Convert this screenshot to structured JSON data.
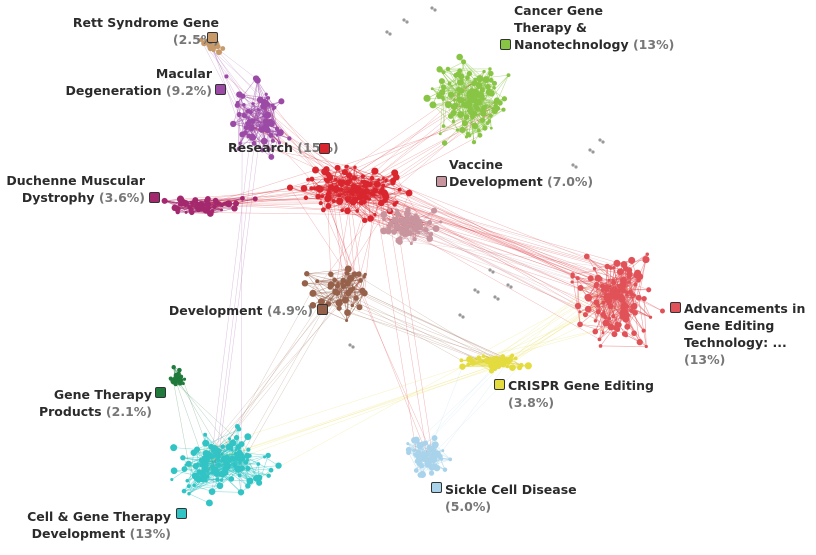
{
  "clusters": [
    {
      "key": "rett",
      "name_lines": [
        "Rett Syndrome Gene"
      ],
      "pct": "(2.5%)",
      "color": "#c89a6a"
    },
    {
      "key": "macular",
      "name_lines": [
        "Macular",
        "Degeneration"
      ],
      "pct": "(9.2%)",
      "color": "#9b4aa6"
    },
    {
      "key": "cancer",
      "name_lines": [
        "Cancer Gene",
        "Therapy &",
        "Nanotechnology"
      ],
      "pct": "(13%)",
      "color": "#88c545"
    },
    {
      "key": "research",
      "name_lines": [
        "Research"
      ],
      "pct": "(15%)",
      "color": "#d9262e"
    },
    {
      "key": "vaccine",
      "name_lines": [
        "Vaccine",
        "Development"
      ],
      "pct": "(7.0%)",
      "color": "#c8949e"
    },
    {
      "key": "duchenne",
      "name_lines": [
        "Duchenne Muscular",
        "Dystrophy"
      ],
      "pct": "(3.6%)",
      "color": "#a3286e"
    },
    {
      "key": "advancements",
      "name_lines": [
        "Advancements in",
        "Gene Editing",
        "Technology: ..."
      ],
      "pct": "(13%)",
      "color": "#e05257"
    },
    {
      "key": "development",
      "name_lines": [
        "Development"
      ],
      "pct": "(4.9%)",
      "color": "#96614b"
    },
    {
      "key": "crispr",
      "name_lines": [
        "CRISPR Gene Editing"
      ],
      "pct": "(3.8%)",
      "color": "#e4db3e"
    },
    {
      "key": "products",
      "name_lines": [
        "Gene Therapy",
        "Products"
      ],
      "pct": "(2.1%)",
      "color": "#1f7a3c"
    },
    {
      "key": "sickle",
      "name_lines": [
        "Sickle Cell Disease"
      ],
      "pct": "(5.0%)",
      "color": "#a8d3ea"
    },
    {
      "key": "cellgene",
      "name_lines": [
        "Cell & Gene Therapy",
        "Development"
      ],
      "pct": "(13%)",
      "color": "#32c4c4"
    }
  ]
}
